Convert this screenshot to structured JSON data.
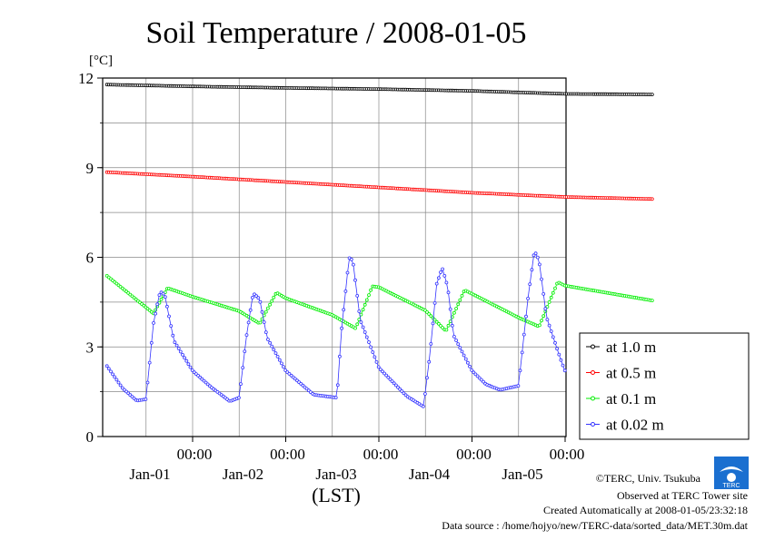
{
  "chart_data": {
    "type": "line",
    "title": "Soil Temperature / 2008-01-05",
    "y_unit_label": "[°C]",
    "xlabel": "(LST)",
    "ylim": [
      0,
      12
    ],
    "y_ticks": [
      0,
      3,
      6,
      9,
      12
    ],
    "x_time_labels": [
      "00:00",
      "00:00",
      "00:00",
      "00:00",
      "00:00"
    ],
    "x_date_labels": [
      "Jan-01",
      "Jan-02",
      "Jan-03",
      "Jan-04",
      "Jan-05"
    ],
    "grid": true,
    "legend_position": "right",
    "series": [
      {
        "name": "at 1.0 m",
        "color": "#000000",
        "points": [
          [
            -0.92,
            11.78
          ],
          [
            0.0,
            11.72
          ],
          [
            1.0,
            11.67
          ],
          [
            2.0,
            11.63
          ],
          [
            3.0,
            11.57
          ],
          [
            4.0,
            11.47
          ],
          [
            4.94,
            11.45
          ]
        ]
      },
      {
        "name": "at 0.5 m",
        "color": "#ff0000",
        "points": [
          [
            -0.92,
            8.85
          ],
          [
            0.0,
            8.7
          ],
          [
            1.0,
            8.52
          ],
          [
            2.0,
            8.34
          ],
          [
            3.0,
            8.16
          ],
          [
            4.0,
            8.02
          ],
          [
            4.94,
            7.95
          ]
        ]
      },
      {
        "name": "at 0.1 m",
        "color": "#00ee00",
        "points": [
          [
            -0.92,
            5.38
          ],
          [
            -0.42,
            4.12
          ],
          [
            -0.27,
            4.97
          ],
          [
            0.0,
            4.68
          ],
          [
            0.5,
            4.2
          ],
          [
            0.72,
            3.78
          ],
          [
            0.9,
            4.82
          ],
          [
            1.0,
            4.63
          ],
          [
            1.5,
            4.07
          ],
          [
            1.75,
            3.62
          ],
          [
            1.93,
            5.03
          ],
          [
            2.0,
            5.0
          ],
          [
            2.5,
            4.22
          ],
          [
            2.72,
            3.53
          ],
          [
            2.92,
            4.9
          ],
          [
            3.0,
            4.78
          ],
          [
            3.5,
            3.98
          ],
          [
            3.72,
            3.68
          ],
          [
            3.92,
            5.17
          ],
          [
            4.0,
            5.05
          ],
          [
            4.94,
            4.55
          ]
        ]
      },
      {
        "name": "at 0.02 m",
        "color": "#3333ff",
        "points": [
          [
            -0.92,
            2.36
          ],
          [
            -0.75,
            1.61
          ],
          [
            -0.6,
            1.2
          ],
          [
            -0.5,
            1.25
          ],
          [
            -0.42,
            3.8
          ],
          [
            -0.35,
            4.85
          ],
          [
            -0.3,
            4.75
          ],
          [
            -0.2,
            3.2
          ],
          [
            0.0,
            2.2
          ],
          [
            0.2,
            1.65
          ],
          [
            0.4,
            1.18
          ],
          [
            0.5,
            1.3
          ],
          [
            0.58,
            3.4
          ],
          [
            0.65,
            4.8
          ],
          [
            0.72,
            4.6
          ],
          [
            0.8,
            3.3
          ],
          [
            1.0,
            2.2
          ],
          [
            1.3,
            1.4
          ],
          [
            1.55,
            1.3
          ],
          [
            1.6,
            3.6
          ],
          [
            1.68,
            5.98
          ],
          [
            1.72,
            5.9
          ],
          [
            1.8,
            3.9
          ],
          [
            2.0,
            2.3
          ],
          [
            2.3,
            1.35
          ],
          [
            2.48,
            1.0
          ],
          [
            2.55,
            2.8
          ],
          [
            2.62,
            5.1
          ],
          [
            2.68,
            5.65
          ],
          [
            2.74,
            5.0
          ],
          [
            2.8,
            3.4
          ],
          [
            3.0,
            2.2
          ],
          [
            3.15,
            1.75
          ],
          [
            3.3,
            1.56
          ],
          [
            3.5,
            1.7
          ],
          [
            3.6,
            4.6
          ],
          [
            3.67,
            6.22
          ],
          [
            3.72,
            5.9
          ],
          [
            3.8,
            4.0
          ],
          [
            3.95,
            2.6
          ],
          [
            4.0,
            2.18
          ]
        ]
      }
    ]
  },
  "footer": {
    "copyright": "©TERC, Univ. Tsukuba",
    "observed": "Observed at TERC Tower site",
    "created": "Created Automatically at 2008-01-05/23:32:18",
    "source": "Data source : /home/hojyo/new/TERC-data/sorted_data/MET.30m.dat",
    "logo_text": "TERC"
  }
}
